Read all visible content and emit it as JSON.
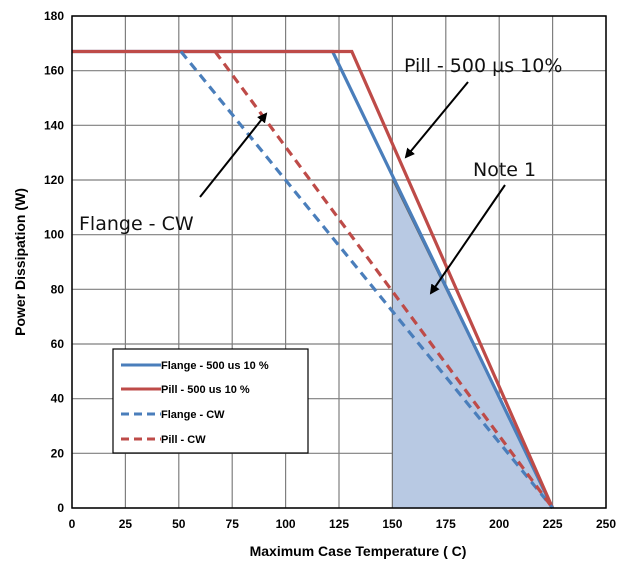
{
  "chart_data": {
    "type": "line",
    "title": "",
    "xlabel": "Maximum Case Temperature ( C)",
    "ylabel": "Power Dissipation (W)",
    "xlim": [
      0,
      250
    ],
    "ylim": [
      0,
      180
    ],
    "xticks": [
      0,
      25,
      50,
      75,
      100,
      125,
      150,
      175,
      200,
      225,
      250
    ],
    "yticks": [
      0,
      20,
      40,
      60,
      80,
      100,
      120,
      140,
      160,
      180
    ],
    "grid": true,
    "legend_position": "bottom-left",
    "series": [
      {
        "name": "Flange - 500 us 10 %",
        "style": "solid",
        "color": "#4a7ebb",
        "x": [
          0,
          122,
          225
        ],
        "y": [
          167,
          167,
          0
        ]
      },
      {
        "name": "Pill - 500 us 10 %",
        "style": "solid",
        "color": "#be4b48",
        "x": [
          0,
          131,
          225
        ],
        "y": [
          167,
          167,
          0
        ]
      },
      {
        "name": "Flange - CW",
        "style": "dashed",
        "color": "#4a7ebb",
        "x": [
          51,
          225
        ],
        "y": [
          167,
          0
        ]
      },
      {
        "name": "Pill - CW",
        "style": "dashed",
        "color": "#be4b48",
        "x": [
          67,
          225
        ],
        "y": [
          167,
          0
        ]
      }
    ],
    "shaded_region": {
      "color": "#b8c9e3",
      "x": [
        150,
        150,
        225
      ],
      "y": [
        0,
        120,
        0
      ]
    },
    "annotations": [
      {
        "text": "Pill - 500 µs 10%",
        "arrow_to": [
          151,
          129
        ]
      },
      {
        "text": "Note 1",
        "arrow_to": [
          166,
          80
        ]
      },
      {
        "text": "Flange - CW",
        "arrow_to": [
          90,
          144
        ]
      }
    ]
  }
}
